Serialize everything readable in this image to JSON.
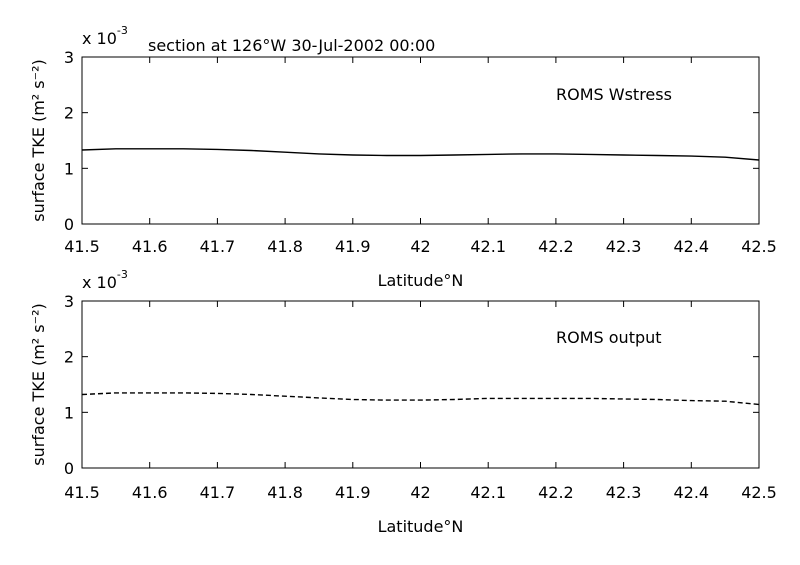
{
  "chart_data": [
    {
      "type": "line",
      "title": "section at 126°W 30-Jul-2002 00:00",
      "scale_note": {
        "base": "x 10",
        "exp": "-3"
      },
      "xlabel": "Latitude°N",
      "ylabel": "surface TKE (m² s⁻²)",
      "xlim": [
        41.5,
        42.5
      ],
      "ylim": [
        0,
        3
      ],
      "xticks": [
        41.5,
        41.6,
        41.7,
        41.8,
        41.9,
        42,
        42.1,
        42.2,
        42.3,
        42.4,
        42.5
      ],
      "yticks": [
        0,
        1,
        2,
        3
      ],
      "annotation": "ROMS Wstress",
      "line_style": "solid",
      "series": [
        {
          "x": [
            41.5,
            41.55,
            41.6,
            41.65,
            41.7,
            41.75,
            41.8,
            41.85,
            41.9,
            41.95,
            42.0,
            42.05,
            42.1,
            42.15,
            42.2,
            42.25,
            42.3,
            42.35,
            42.4,
            42.45,
            42.5
          ],
          "values": [
            1.33,
            1.35,
            1.35,
            1.35,
            1.34,
            1.32,
            1.29,
            1.26,
            1.24,
            1.23,
            1.23,
            1.24,
            1.25,
            1.26,
            1.26,
            1.25,
            1.24,
            1.23,
            1.22,
            1.2,
            1.15
          ]
        }
      ]
    },
    {
      "type": "line",
      "title": "",
      "scale_note": {
        "base": "x 10",
        "exp": "-3"
      },
      "xlabel": "Latitude°N",
      "ylabel": "surface TKE (m² s⁻²)",
      "xlim": [
        41.5,
        42.5
      ],
      "ylim": [
        0,
        3
      ],
      "xticks": [
        41.5,
        41.6,
        41.7,
        41.8,
        41.9,
        42,
        42.1,
        42.2,
        42.3,
        42.4,
        42.5
      ],
      "yticks": [
        0,
        1,
        2,
        3
      ],
      "annotation": "ROMS output",
      "line_style": "dashed",
      "series": [
        {
          "x": [
            41.5,
            41.55,
            41.6,
            41.65,
            41.7,
            41.75,
            41.8,
            41.85,
            41.9,
            41.95,
            42.0,
            42.05,
            42.1,
            42.15,
            42.2,
            42.25,
            42.3,
            42.35,
            42.4,
            42.45,
            42.5
          ],
          "values": [
            1.32,
            1.35,
            1.35,
            1.35,
            1.34,
            1.32,
            1.29,
            1.26,
            1.23,
            1.22,
            1.22,
            1.23,
            1.25,
            1.25,
            1.25,
            1.25,
            1.24,
            1.23,
            1.21,
            1.2,
            1.14
          ]
        }
      ]
    }
  ]
}
